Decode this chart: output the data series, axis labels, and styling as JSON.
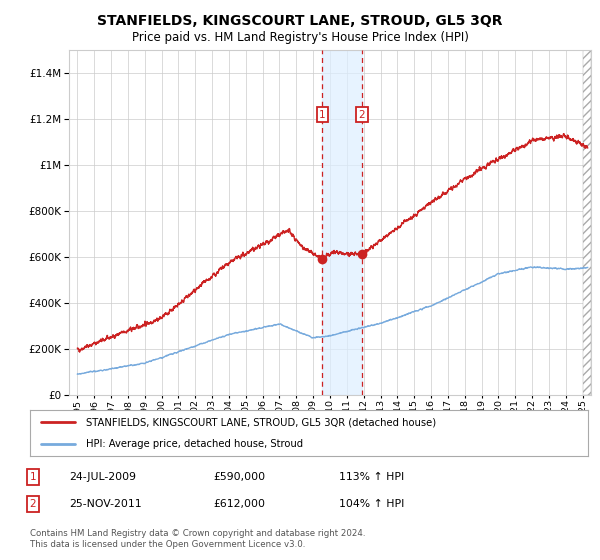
{
  "title": "STANFIELDS, KINGSCOURT LANE, STROUD, GL5 3QR",
  "subtitle": "Price paid vs. HM Land Registry's House Price Index (HPI)",
  "legend_line1": "STANFIELDS, KINGSCOURT LANE, STROUD, GL5 3QR (detached house)",
  "legend_line2": "HPI: Average price, detached house, Stroud",
  "transaction1_date": "24-JUL-2009",
  "transaction1_price": 590000,
  "transaction1_pct": "113% ↑ HPI",
  "transaction1_year": 2009.55,
  "transaction2_date": "25-NOV-2011",
  "transaction2_price": 612000,
  "transaction2_pct": "104% ↑ HPI",
  "transaction2_year": 2011.9,
  "ylim": [
    0,
    1500000
  ],
  "yticks": [
    0,
    200000,
    400000,
    600000,
    800000,
    1000000,
    1200000,
    1400000
  ],
  "xlim_start": 1994.5,
  "xlim_end": 2025.5,
  "hatch_start": 2025.0,
  "footer": "Contains HM Land Registry data © Crown copyright and database right 2024.\nThis data is licensed under the Open Government Licence v3.0.",
  "red_line_color": "#cc2222",
  "blue_line_color": "#77aadd",
  "background_color": "#ffffff",
  "grid_color": "#cccccc",
  "transaction_box_color": "#cc2222",
  "shade_color": "#ddeeff",
  "hatch_color": "#aaaaaa",
  "title_font": "DejaVu Sans",
  "title_fontsize": 10,
  "subtitle_fontsize": 8.5
}
